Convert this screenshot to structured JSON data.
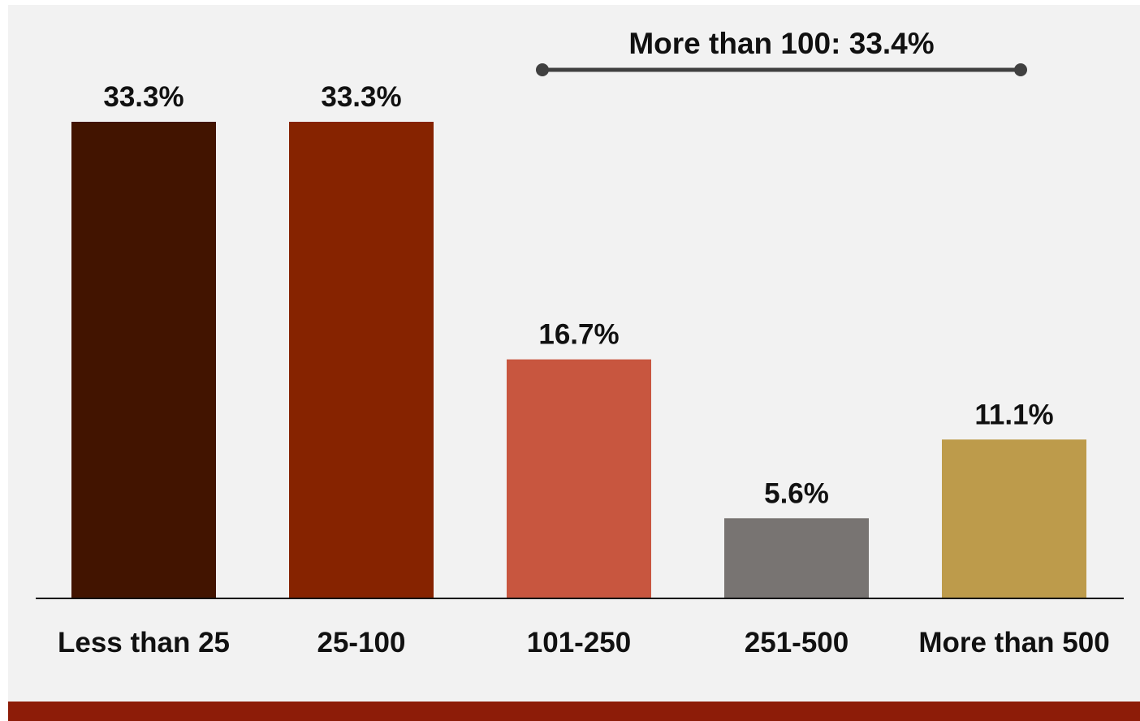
{
  "chart_data": {
    "type": "bar",
    "categories": [
      "Less than 25",
      "25-100",
      "101-250",
      "251-500",
      "More than 500"
    ],
    "values": [
      33.3,
      33.3,
      16.7,
      5.6,
      11.1
    ],
    "value_labels": [
      "33.3%",
      "33.3%",
      "16.7%",
      "5.6%",
      "11.1%"
    ],
    "colors": [
      "#421400",
      "#862300",
      "#c8563f",
      "#787472",
      "#bd9b4b"
    ],
    "ylim": [
      0,
      33.3
    ],
    "grid": false,
    "annotation": {
      "text": "More than 100: 33.4%",
      "spans_categories": [
        "101-250",
        "251-500",
        "More than 500"
      ]
    }
  },
  "theme": {
    "background": "#f2f2f2",
    "axis_color": "#111111",
    "footer_band_color": "#8d1c08"
  }
}
